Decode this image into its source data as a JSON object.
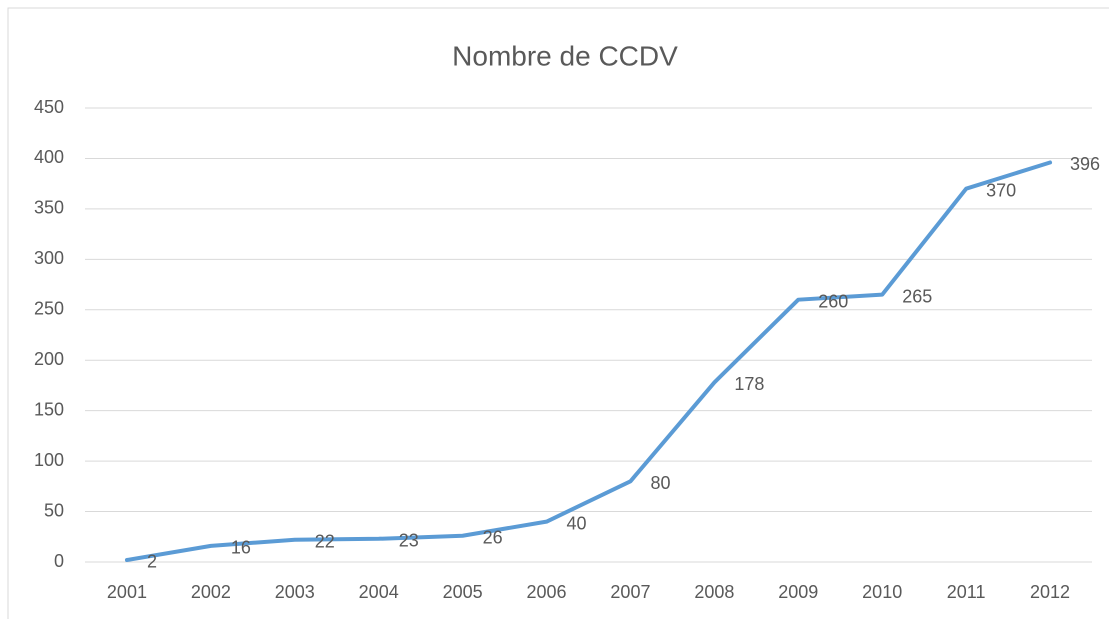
{
  "chart_data": {
    "type": "line",
    "title": "Nombre de CCDV",
    "categories": [
      "2001",
      "2002",
      "2003",
      "2004",
      "2005",
      "2006",
      "2007",
      "2008",
      "2009",
      "2010",
      "2011",
      "2012"
    ],
    "values": [
      2,
      16,
      22,
      23,
      26,
      40,
      80,
      178,
      260,
      265,
      370,
      396
    ],
    "color": "#5b9bd5",
    "ylim": [
      0,
      450
    ],
    "yticks": [
      0,
      50,
      100,
      150,
      200,
      250,
      300,
      350,
      400,
      450
    ],
    "grid": true
  }
}
